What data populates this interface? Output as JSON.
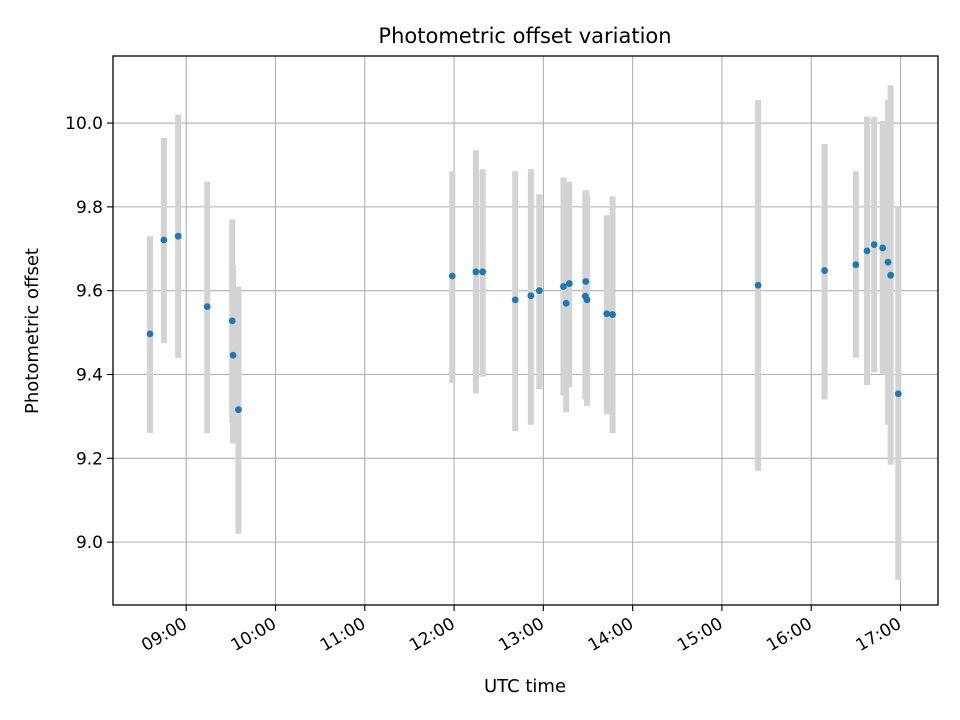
{
  "chart_data": {
    "type": "scatter",
    "title": "Photometric offset variation",
    "xlabel": "UTC time",
    "ylabel": "Photometric offset",
    "x_unit": "hours UTC",
    "xlim": [
      8.18,
      17.42
    ],
    "ylim": [
      8.85,
      10.16
    ],
    "grid": true,
    "x_ticks": [
      {
        "value": 9,
        "label": "09:00"
      },
      {
        "value": 10,
        "label": "10:00"
      },
      {
        "value": 11,
        "label": "11:00"
      },
      {
        "value": 12,
        "label": "12:00"
      },
      {
        "value": 13,
        "label": "13:00"
      },
      {
        "value": 14,
        "label": "14:00"
      },
      {
        "value": 15,
        "label": "15:00"
      },
      {
        "value": 16,
        "label": "16:00"
      },
      {
        "value": 17,
        "label": "17:00"
      }
    ],
    "y_ticks": [
      {
        "value": 9.0,
        "label": "9.0"
      },
      {
        "value": 9.2,
        "label": "9.2"
      },
      {
        "value": 9.4,
        "label": "9.4"
      },
      {
        "value": 9.6,
        "label": "9.6"
      },
      {
        "value": 9.8,
        "label": "9.8"
      },
      {
        "value": 10.0,
        "label": "10.0"
      }
    ],
    "colors": {
      "point": "#1f77b4",
      "errorbar": "#d3d3d3",
      "grid": "#b0b0b0",
      "axis": "#000000"
    },
    "points": [
      {
        "x": 8.595,
        "y": 9.497,
        "err_low": 9.26,
        "err_high": 9.73
      },
      {
        "x": 8.75,
        "y": 9.721,
        "err_low": 9.475,
        "err_high": 9.965
      },
      {
        "x": 8.91,
        "y": 9.73,
        "err_low": 9.44,
        "err_high": 10.02
      },
      {
        "x": 9.235,
        "y": 9.562,
        "err_low": 9.26,
        "err_high": 9.86
      },
      {
        "x": 9.515,
        "y": 9.528,
        "err_low": 9.285,
        "err_high": 9.77
      },
      {
        "x": 9.525,
        "y": 9.446,
        "err_low": 9.235,
        "err_high": 9.66
      },
      {
        "x": 9.585,
        "y": 9.316,
        "err_low": 9.02,
        "err_high": 9.61
      },
      {
        "x": 11.98,
        "y": 9.635,
        "err_low": 9.38,
        "err_high": 9.885
      },
      {
        "x": 12.245,
        "y": 9.645,
        "err_low": 9.355,
        "err_high": 9.935
      },
      {
        "x": 12.32,
        "y": 9.645,
        "err_low": 9.395,
        "err_high": 9.89
      },
      {
        "x": 12.685,
        "y": 9.578,
        "err_low": 9.265,
        "err_high": 9.885
      },
      {
        "x": 12.86,
        "y": 9.588,
        "err_low": 9.28,
        "err_high": 9.89
      },
      {
        "x": 12.955,
        "y": 9.6,
        "err_low": 9.365,
        "err_high": 9.83
      },
      {
        "x": 13.225,
        "y": 9.61,
        "err_low": 9.35,
        "err_high": 9.87
      },
      {
        "x": 13.255,
        "y": 9.57,
        "err_low": 9.31,
        "err_high": 9.825
      },
      {
        "x": 13.29,
        "y": 9.617,
        "err_low": 9.37,
        "err_high": 9.86
      },
      {
        "x": 13.475,
        "y": 9.622,
        "err_low": 9.42,
        "err_high": 9.84
      },
      {
        "x": 13.47,
        "y": 9.587,
        "err_low": 9.34,
        "err_high": 9.835
      },
      {
        "x": 13.49,
        "y": 9.578,
        "err_low": 9.325,
        "err_high": 9.83
      },
      {
        "x": 13.71,
        "y": 9.545,
        "err_low": 9.305,
        "err_high": 9.78
      },
      {
        "x": 13.775,
        "y": 9.543,
        "err_low": 9.26,
        "err_high": 9.825
      },
      {
        "x": 15.405,
        "y": 9.613,
        "err_low": 9.17,
        "err_high": 10.055
      },
      {
        "x": 16.15,
        "y": 9.648,
        "err_low": 9.34,
        "err_high": 9.95
      },
      {
        "x": 16.5,
        "y": 9.662,
        "err_low": 9.44,
        "err_high": 9.885
      },
      {
        "x": 16.625,
        "y": 9.695,
        "err_low": 9.375,
        "err_high": 10.015
      },
      {
        "x": 16.705,
        "y": 9.71,
        "err_low": 9.405,
        "err_high": 10.015
      },
      {
        "x": 16.8,
        "y": 9.702,
        "err_low": 9.4,
        "err_high": 10.005
      },
      {
        "x": 16.86,
        "y": 9.668,
        "err_low": 9.28,
        "err_high": 10.055
      },
      {
        "x": 16.89,
        "y": 9.637,
        "err_low": 9.185,
        "err_high": 10.09
      },
      {
        "x": 16.975,
        "y": 9.354,
        "err_low": 8.91,
        "err_high": 9.8
      }
    ]
  }
}
